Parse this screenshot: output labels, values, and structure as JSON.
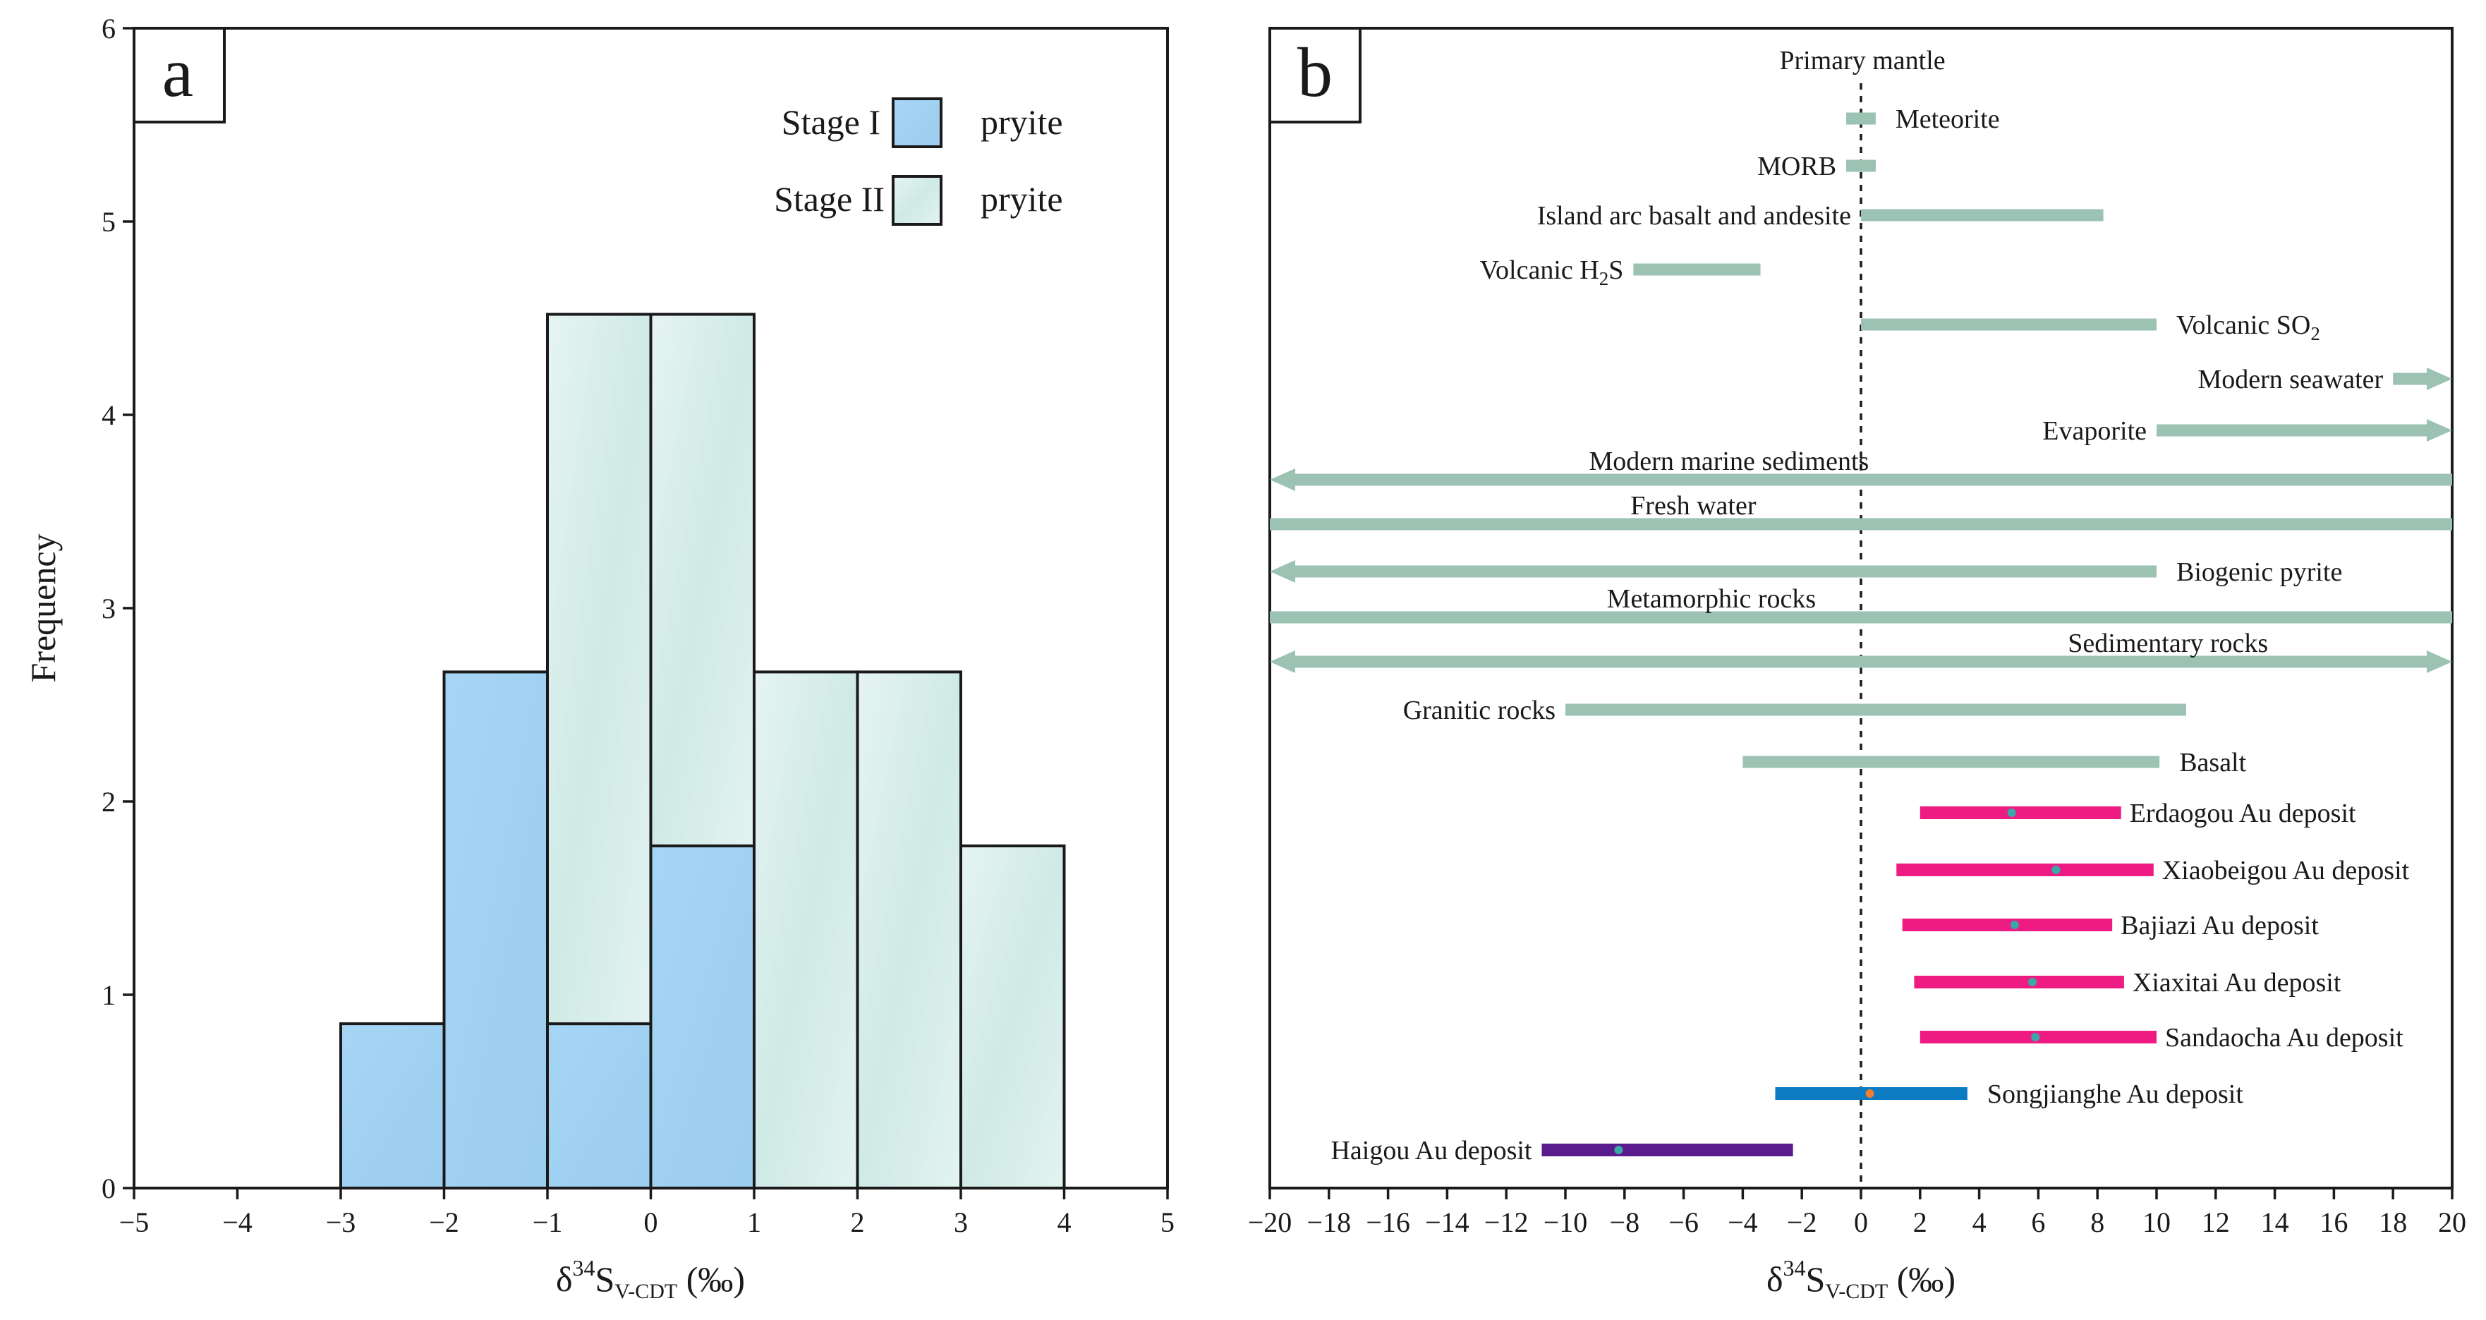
{
  "chart_data": [
    {
      "panel": "a",
      "type": "bar",
      "stacked": true,
      "xlabel_main": "δ",
      "xlabel_sup": "34",
      "xlabel_s": "S",
      "xlabel_sub": "V-CDT",
      "xlabel_unit": " (‰)",
      "ylabel": "Frequency",
      "xlim": [
        -5,
        5
      ],
      "ylim": [
        0,
        6
      ],
      "xticks": [
        "−5",
        "−4",
        "−3",
        "−2",
        "−1",
        "0",
        "1",
        "2",
        "3",
        "4",
        "5"
      ],
      "yticks": [
        "0",
        "1",
        "2",
        "3",
        "4",
        "5",
        "6"
      ],
      "bins": [
        [
          -3,
          -2
        ],
        [
          -2,
          -1
        ],
        [
          -1,
          0
        ],
        [
          0,
          1
        ],
        [
          1,
          2
        ],
        [
          2,
          3
        ],
        [
          3,
          4
        ]
      ],
      "series": [
        {
          "name": "Stage I",
          "legend_label": "Stage I",
          "legend_suffix": "pryite",
          "color": "#a3d3f2",
          "values": [
            0.85,
            2.67,
            0.85,
            1.77,
            0,
            0,
            0
          ]
        },
        {
          "name": "Stage II",
          "legend_label": "Stage II",
          "legend_suffix": "pryite",
          "color": "#dff1ee",
          "values": [
            0,
            0,
            3.67,
            2.75,
            2.67,
            2.67,
            1.77
          ]
        }
      ]
    },
    {
      "panel": "b",
      "type": "range",
      "xlabel_main": "δ",
      "xlabel_sup": "34",
      "xlabel_s": "S",
      "xlabel_sub": "V-CDT",
      "xlabel_unit": " (‰)",
      "xlim": [
        -20,
        20
      ],
      "xticks": [
        "−20",
        "−18",
        "−16",
        "−14",
        "−12",
        "−10",
        "−8",
        "−6",
        "−4",
        "−2",
        "0",
        "2",
        "4",
        "6",
        "8",
        "10",
        "12",
        "14",
        "16",
        "18",
        "20"
      ],
      "reference_label": "Primary  mantle",
      "ranges": [
        {
          "label": "Meteorite",
          "from": -0.5,
          "to": 0.5,
          "color": "#9bc2b3",
          "label_side": "right"
        },
        {
          "label": "MORB",
          "from": -0.5,
          "to": 0.5,
          "color": "#9bc2b3",
          "label_side": "left"
        },
        {
          "label": "Island arc basalt and andesite",
          "from": 0,
          "to": 8.2,
          "color": "#9bc2b3",
          "label_side": "left"
        },
        {
          "label": "Volcanic H",
          "label_sub": "2",
          "label_tail": "S",
          "from": -7.7,
          "to": -3.4,
          "color": "#9bc2b3",
          "label_side": "left"
        },
        {
          "label": "Volcanic SO",
          "label_sub": "2",
          "from": 0,
          "to": 10,
          "color": "#9bc2b3",
          "label_side": "right"
        },
        {
          "label": "Modern seawater",
          "from": 18,
          "to": 20,
          "color": "#9bc2b3",
          "label_side": "left",
          "arrow_right": true
        },
        {
          "label": "Evaporite",
          "from": 10,
          "to": 20,
          "color": "#9bc2b3",
          "label_side": "left",
          "arrow_right": true
        },
        {
          "label": "Modern marine  sediments",
          "from": -20,
          "to": 20,
          "color": "#9bc2b3",
          "label_side": "above",
          "arrow_left": true
        },
        {
          "label": "Fresh water",
          "from": -20,
          "to": 20,
          "color": "#9bc2b3",
          "label_side": "above"
        },
        {
          "label": "Biogenic  pyrite",
          "from": -20,
          "to": 10,
          "color": "#9bc2b3",
          "label_side": "right",
          "arrow_left": true
        },
        {
          "label": "Metamorphic rocks",
          "from": -20,
          "to": 20,
          "color": "#9bc2b3",
          "label_side": "above"
        },
        {
          "label": "Sedimentary rocks",
          "from": -20,
          "to": 20,
          "color": "#9bc2b3",
          "label_side": "above_right",
          "arrow_left": true,
          "arrow_right": true
        },
        {
          "label": "Granitic rocks",
          "from": -10,
          "to": 11,
          "color": "#9bc2b3",
          "label_side": "left"
        },
        {
          "label": "Basalt",
          "from": -4,
          "to": 10.1,
          "color": "#9bc2b3",
          "label_side": "right"
        },
        {
          "label": "Erdaogou Au deposit",
          "from": 2,
          "to": 8.8,
          "mean": 5.1,
          "color": "#ee1b82",
          "mean_color": "#3aa8a8",
          "label_side": "right_small"
        },
        {
          "label": "Xiaobeigou Au deposit",
          "from": 1.2,
          "to": 9.9,
          "mean": 6.6,
          "color": "#ee1b82",
          "mean_color": "#3aa8a8",
          "label_side": "right_small"
        },
        {
          "label": "Bajiazi Au deposit",
          "from": 1.4,
          "to": 8.5,
          "mean": 5.2,
          "color": "#ee1b82",
          "mean_color": "#3aa8a8",
          "label_side": "right_small"
        },
        {
          "label": "Xiaxitai Au deposit",
          "from": 1.8,
          "to": 8.9,
          "mean": 5.8,
          "color": "#ee1b82",
          "mean_color": "#3aa8a8",
          "label_side": "right_small"
        },
        {
          "label": "Sandaocha Au deposit",
          "from": 2,
          "to": 10,
          "mean": 5.9,
          "color": "#ee1b82",
          "mean_color": "#3aa8a8",
          "label_side": "right_small"
        },
        {
          "label": "Songjianghe Au deposit",
          "from": -2.9,
          "to": 3.6,
          "mean": 0.3,
          "color": "#0c7bc1",
          "mean_color": "#f08030",
          "label_side": "right"
        },
        {
          "label": "Haigou Au deposit",
          "from": -10.8,
          "to": -2.3,
          "mean": -8.2,
          "color": "#5a1c8c",
          "mean_color": "#3aa8a8",
          "label_side": "left"
        }
      ]
    }
  ]
}
